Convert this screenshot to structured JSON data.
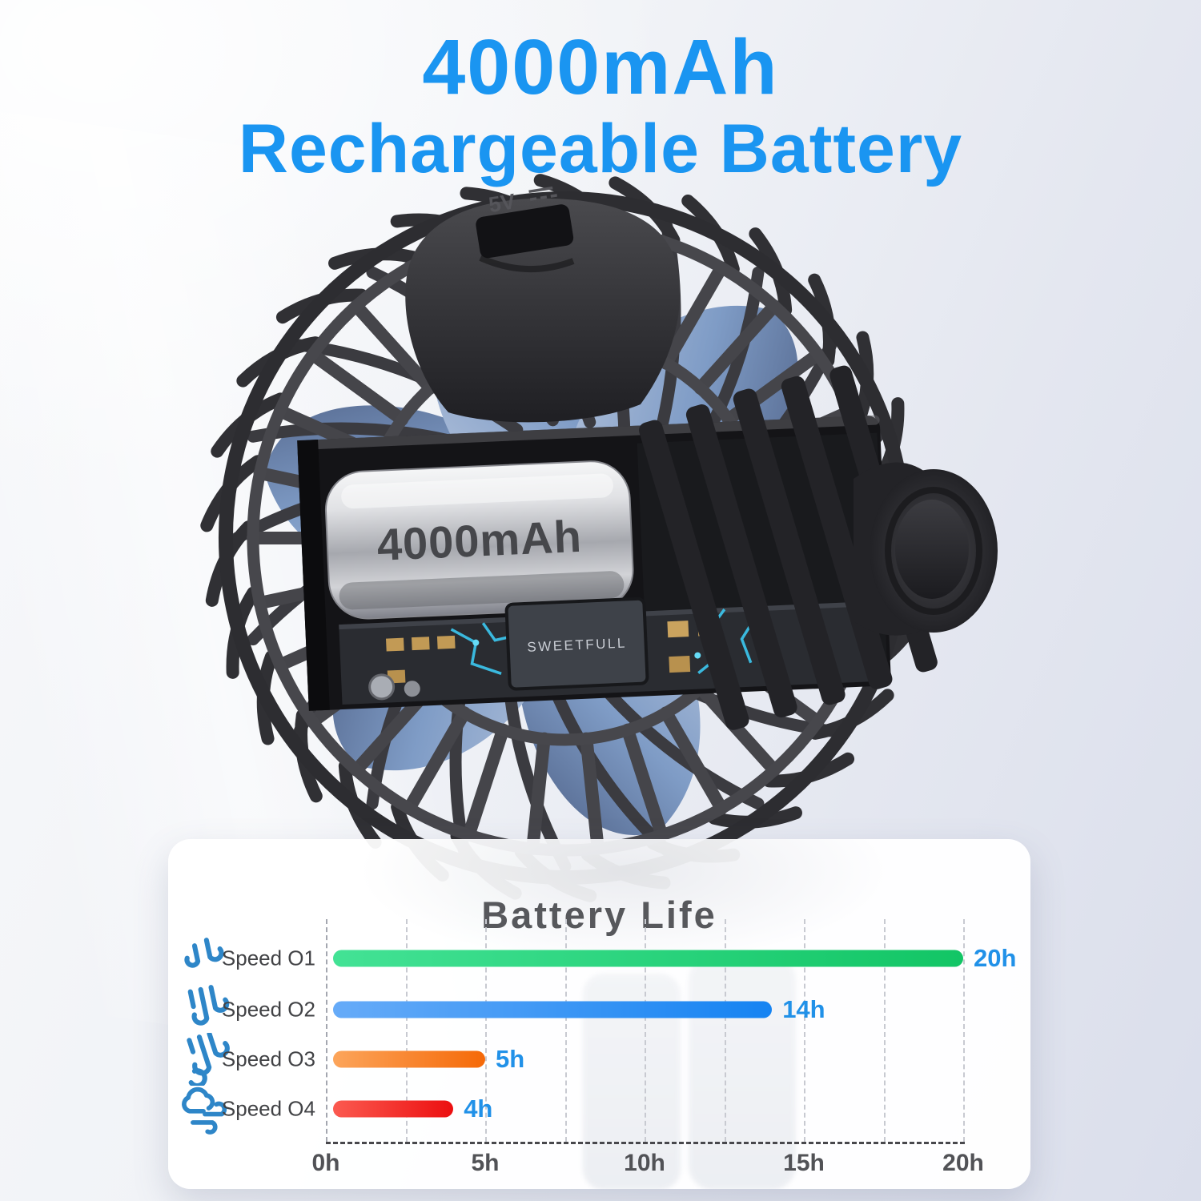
{
  "header": {
    "title_line1": "4000mAh",
    "title_line2": "Rechargeable Battery",
    "text_color": "#1a95f1"
  },
  "product": {
    "description": "clip-on rechargeable fan shown from rear with cutaway revealing battery and circuit board",
    "battery_label": "4000mAh",
    "chip_label": "SWEETFULL",
    "port_label": "5V",
    "blade_color": "#7f9cc6",
    "body_color": "#323236"
  },
  "chart_data": {
    "type": "bar",
    "orientation": "horizontal",
    "title": "Battery Life",
    "categories": [
      "Speed O1",
      "Speed O2",
      "Speed O3",
      "Speed O4"
    ],
    "values": [
      20,
      14,
      5,
      4
    ],
    "value_labels": [
      "20h",
      "14h",
      "5h",
      "4h"
    ],
    "unit": "hours",
    "xlim": [
      0,
      20
    ],
    "grid_step": 2.5,
    "grid": "dashed-vertical",
    "x_ticks": [
      {
        "value": 0,
        "label": "0h"
      },
      {
        "value": 5,
        "label": "5h"
      },
      {
        "value": 10,
        "label": "10h"
      },
      {
        "value": 15,
        "label": "15h"
      },
      {
        "value": 20,
        "label": "20h"
      }
    ],
    "bar_gradients": [
      [
        "#43e295",
        "#12c565"
      ],
      [
        "#66abf8",
        "#1583f2"
      ],
      [
        "#fca55b",
        "#f56908"
      ],
      [
        "#fb5a50",
        "#ec0f10"
      ]
    ],
    "value_label_color": "#2191e8",
    "icon_color": "#2e86c8",
    "icons": [
      "breeze-1-icon",
      "breeze-2-icon",
      "breeze-3-icon",
      "wind-cloud-icon"
    ]
  }
}
